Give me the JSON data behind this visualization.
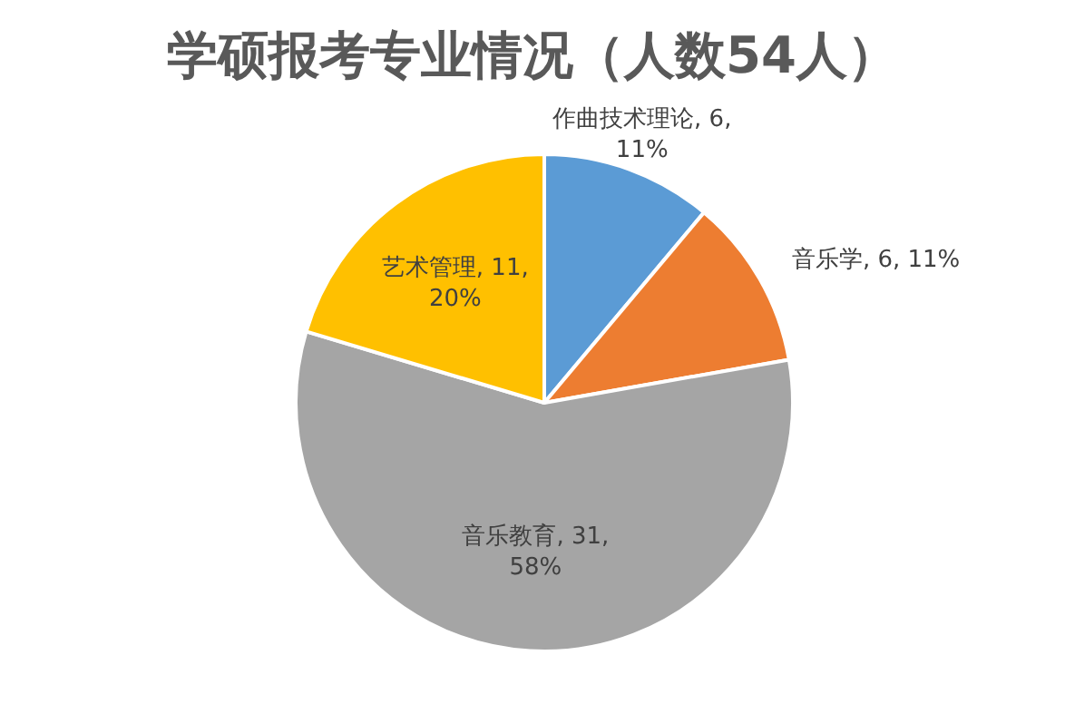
{
  "chart_data": {
    "type": "pie",
    "title": "学硕报考专业情况（人数54人）",
    "categories": [
      "作曲技术理论",
      "音乐学",
      "音乐教育",
      "艺术管理"
    ],
    "values": [
      6,
      6,
      31,
      11
    ],
    "colors": [
      "#5b9bd5",
      "#ed7d31",
      "#a5a5a5",
      "#ffc000"
    ],
    "value_labels": [
      "6, 11%",
      "6, 11%",
      "31, 58%",
      "11, 20%"
    ]
  }
}
